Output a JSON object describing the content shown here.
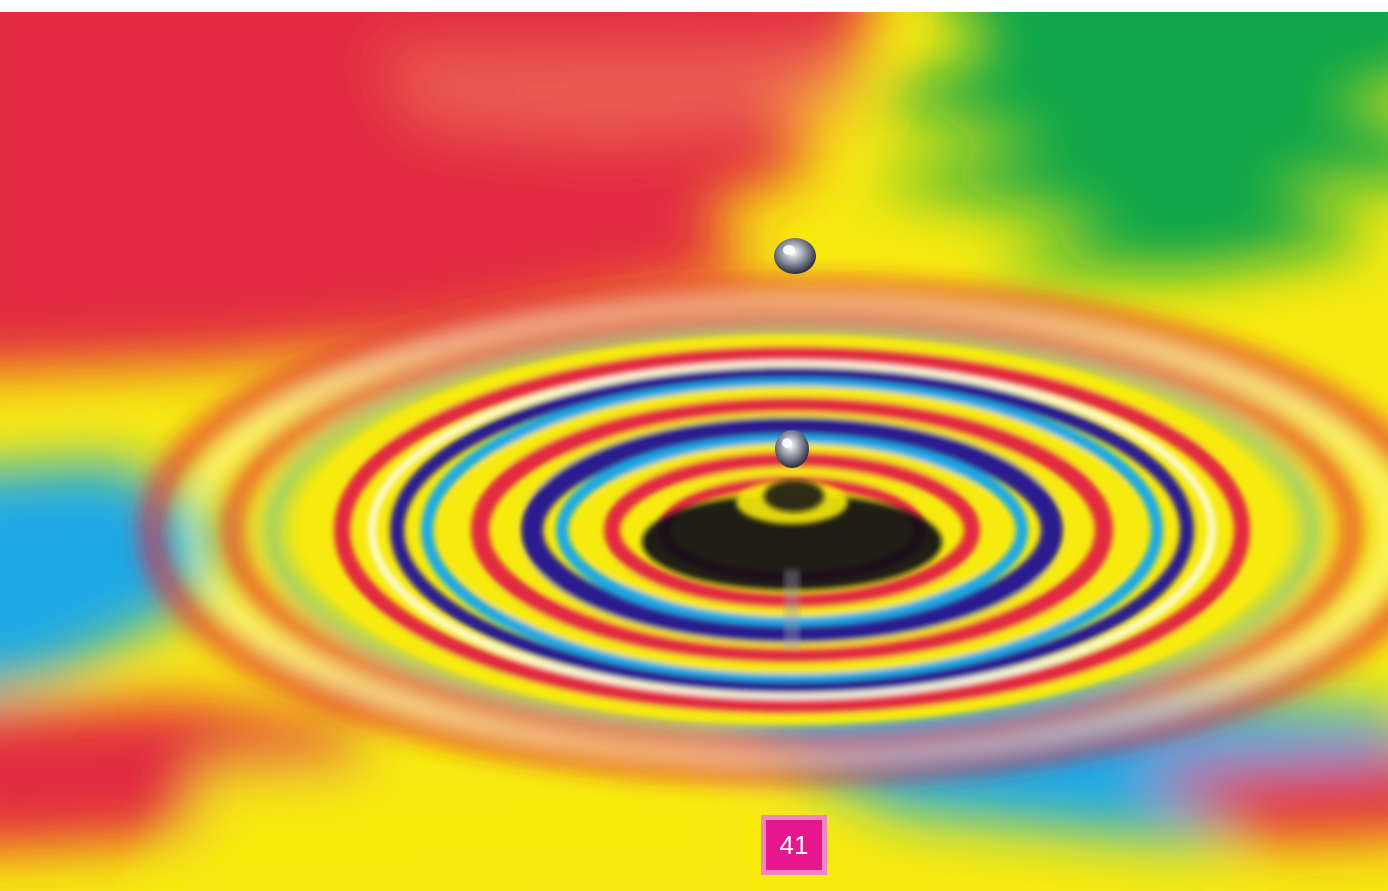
{
  "photo": {
    "subject": "water-drop-ripples",
    "colors": {
      "red": "#e2293f",
      "yellow": "#f7ea10",
      "green": "#0aa64a",
      "blue": "#1fa9e6",
      "navy": "#2a1f8f",
      "black": "#0a0a14",
      "pink": "#ef86c4",
      "magenta": "#e6168c"
    }
  },
  "page_badge": {
    "number": "41"
  }
}
